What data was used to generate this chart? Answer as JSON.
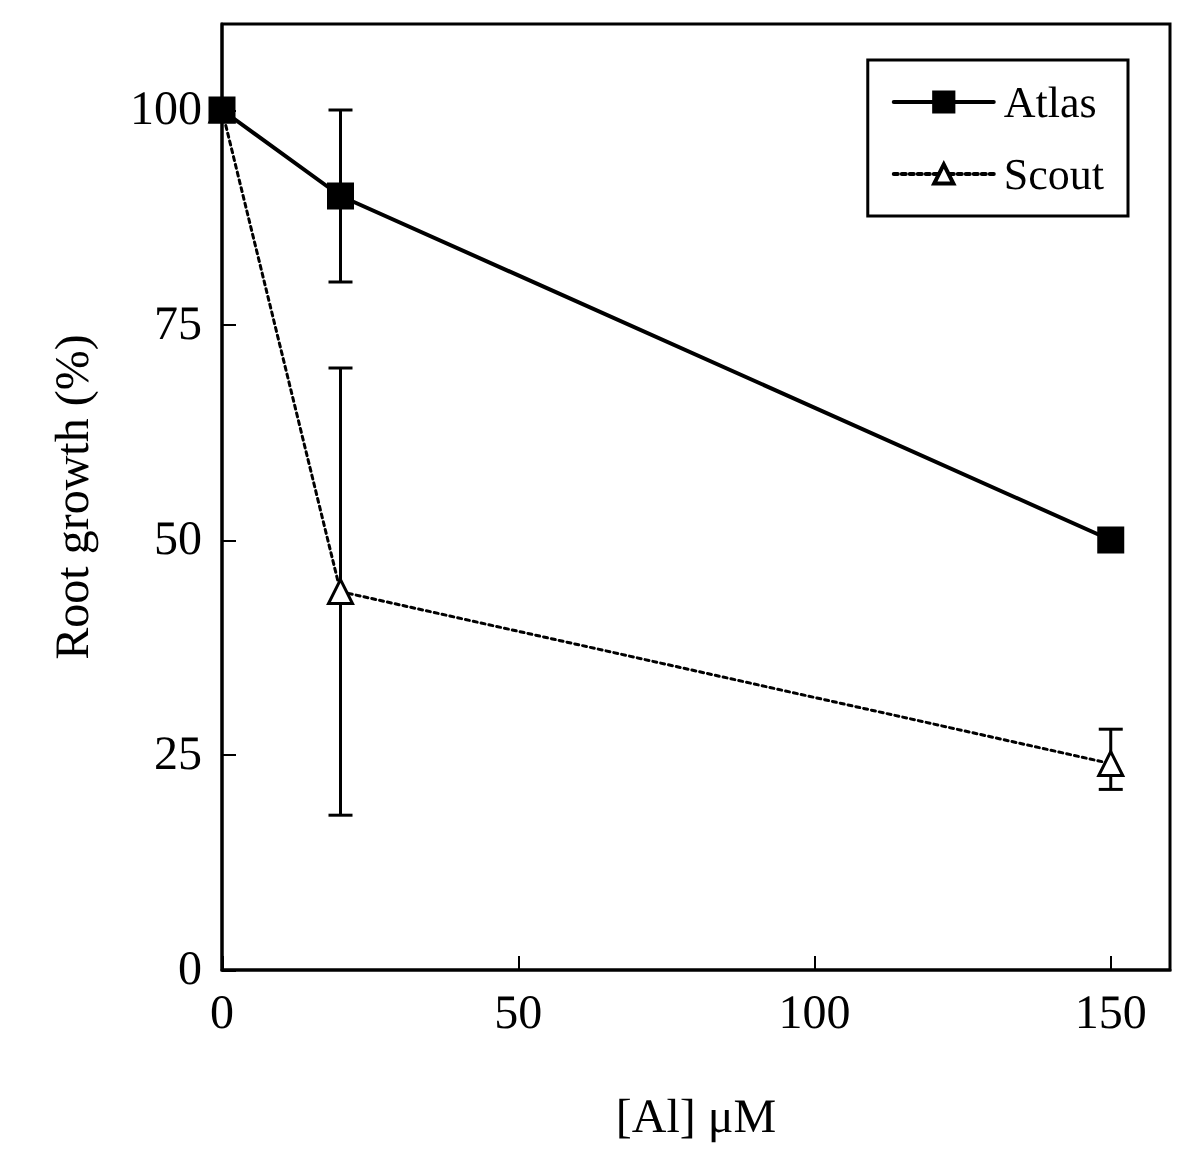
{
  "chart_data": {
    "type": "line",
    "xlabel": "[Al] μM",
    "ylabel": "Root growth (%)",
    "xlim": [
      0,
      160
    ],
    "xticks": [
      0,
      50,
      100,
      150
    ],
    "ylim": [
      0,
      110
    ],
    "yticks": [
      0,
      25,
      50,
      75,
      100
    ],
    "grid": false,
    "legend": "top right",
    "series": [
      {
        "name": "Atlas",
        "color": "#000000",
        "x": [
          0,
          20,
          150
        ],
        "values": [
          100,
          90,
          50
        ],
        "errors": [
          null,
          [
            80,
            100
          ],
          null
        ],
        "marker": "square",
        "line_style": "solid"
      },
      {
        "name": "Scout",
        "color": "#000000",
        "x": [
          0,
          20,
          150
        ],
        "values": [
          100,
          44,
          24
        ],
        "errors": [
          null,
          [
            18,
            70
          ],
          [
            21,
            28
          ]
        ],
        "marker": "triangle",
        "line_style": "dotted"
      }
    ]
  }
}
